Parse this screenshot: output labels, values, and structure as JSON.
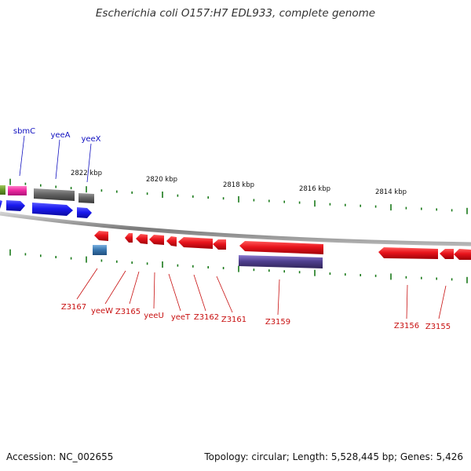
{
  "title": "Escherichia coli O157:H7 EDL933, complete genome",
  "footer": {
    "accession": "Accession: NC_002655",
    "topology": "Topology: circular; Length: 5,528,445 bp; Genes: 5,426"
  },
  "colors": {
    "backbone": "#8a8a8a",
    "minus_strand_gene": "#e8141c",
    "plus_strand_gene": "#1a1af0",
    "plus_label": "#1010c0",
    "minus_label": "#c81010",
    "tick": "#1a7a1a",
    "pseudo_gene": "#6a6a6a",
    "pink_gene": "#ee2aa0",
    "olive_gene": "#6a9a2a",
    "purple_gene": "#504090",
    "steel_gene": "#3a78b0"
  },
  "scale_labels": [
    "2822 kbp",
    "2820 kbp",
    "2818 kbp",
    "2816 kbp",
    "2814 kbp"
  ],
  "plus_gene_labels": [
    "sbmC",
    "yeeA",
    "yeeX"
  ],
  "minus_gene_labels": [
    "Z3167",
    "yeeW",
    "Z3165",
    "yeeU",
    "yeeT",
    "Z3162",
    "Z3161",
    "Z3159",
    "Z3156",
    "Z3155"
  ]
}
